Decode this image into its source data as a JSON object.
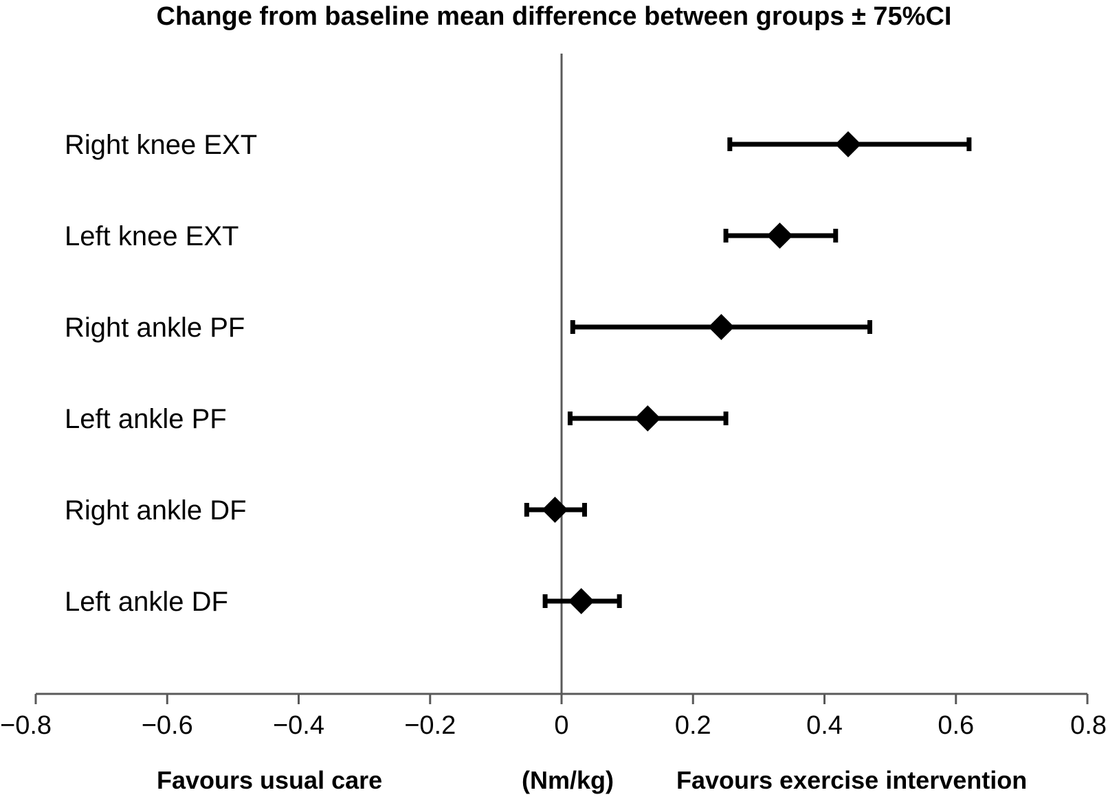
{
  "chart_data": {
    "type": "forest",
    "title": "Change from baseline mean difference between groups ± 75%CI",
    "xlabel": "(Nm/kg)",
    "left_annotation": "Favours usual care",
    "right_annotation": "Favours exercise intervention",
    "xlim": [
      -0.8,
      0.8
    ],
    "x_ticks": [
      -0.8,
      -0.6,
      -0.4,
      -0.2,
      0,
      0.2,
      0.4,
      0.6,
      0.8
    ],
    "x_tick_labels": [
      "−0.8",
      "−0.6",
      "−0.4",
      "−0.2",
      "0",
      "0.2",
      "0.4",
      "0.6",
      "0.8"
    ],
    "grid": false,
    "reference_line": 0,
    "categories": [
      "Right knee EXT",
      "Left knee EXT",
      "Right ankle PF",
      "Left ankle PF",
      "Right ankle DF",
      "Left ankle DF"
    ],
    "estimates": [
      0.436,
      0.332,
      0.243,
      0.131,
      -0.01,
      0.03
    ],
    "ci_lower": [
      0.256,
      0.25,
      0.017,
      0.013,
      -0.053,
      -0.025
    ],
    "ci_upper": [
      0.62,
      0.417,
      0.469,
      0.25,
      0.035,
      0.088
    ],
    "colors": {
      "marker": "#000000",
      "axis": "#595959"
    }
  }
}
